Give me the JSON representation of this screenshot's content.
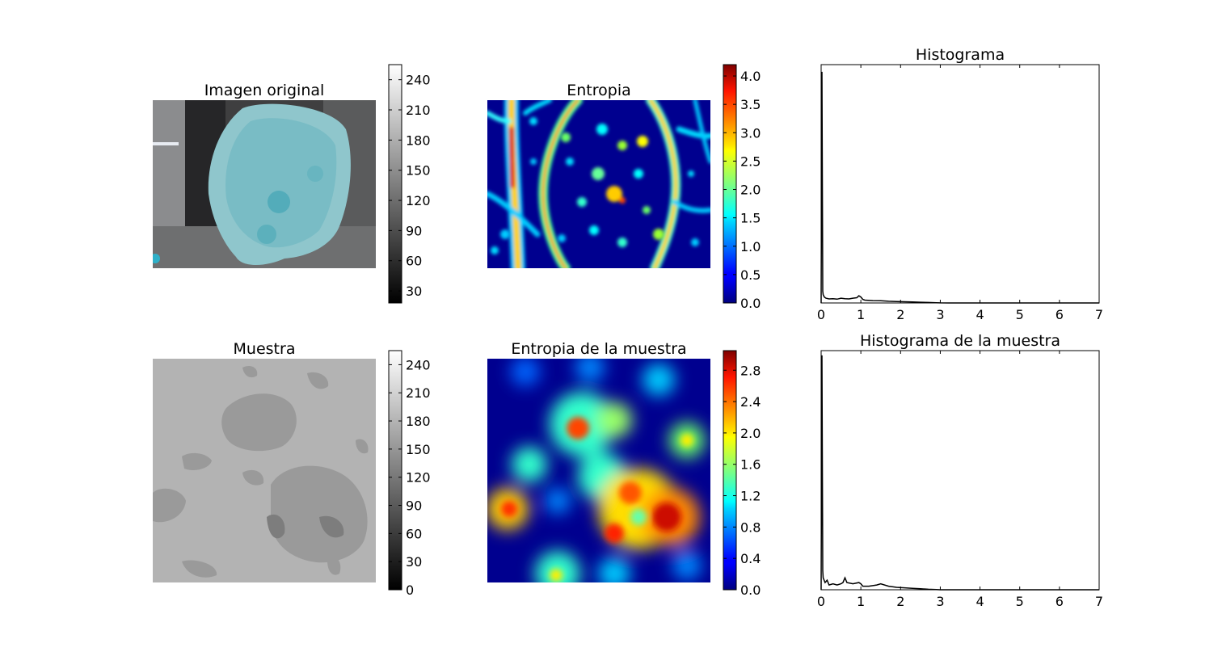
{
  "figure": {
    "panels": [
      {
        "key": "img_original",
        "title": "Imagen original",
        "kind": "image",
        "colormap": "gray",
        "subject": "photo of blue-stained tissue sample on dark background"
      },
      {
        "key": "img_entropia",
        "title": "Entropia",
        "kind": "image",
        "colormap": "jet"
      },
      {
        "key": "img_muestra",
        "title": "Muestra",
        "kind": "image",
        "colormap": "gray"
      },
      {
        "key": "img_entropia_muestra",
        "title": "Entropia de la muestra",
        "kind": "image",
        "colormap": "jet"
      }
    ],
    "colorbars": [
      {
        "key": "cb_original",
        "colormap": "gray",
        "vmin": 18,
        "vmax": 255,
        "ticks": [
          "30",
          "60",
          "90",
          "120",
          "150",
          "180",
          "210",
          "240"
        ],
        "tick_values": [
          30,
          60,
          90,
          120,
          150,
          180,
          210,
          240
        ]
      },
      {
        "key": "cb_entropia",
        "colormap": "jet",
        "vmin": 0,
        "vmax": 4.2,
        "ticks": [
          "0.0",
          "0.5",
          "1.0",
          "1.5",
          "2.0",
          "2.5",
          "3.0",
          "3.5",
          "4.0"
        ],
        "tick_values": [
          0,
          0.5,
          1,
          1.5,
          2,
          2.5,
          3,
          3.5,
          4
        ]
      },
      {
        "key": "cb_muestra",
        "colormap": "gray",
        "vmin": 0,
        "vmax": 255,
        "ticks": [
          "0",
          "30",
          "60",
          "90",
          "120",
          "150",
          "180",
          "210",
          "240"
        ],
        "tick_values": [
          0,
          30,
          60,
          90,
          120,
          150,
          180,
          210,
          240
        ]
      },
      {
        "key": "cb_entropia_muestra",
        "colormap": "jet",
        "vmin": 0,
        "vmax": 3.05,
        "ticks": [
          "0.0",
          "0.4",
          "0.8",
          "1.2",
          "1.6",
          "2.0",
          "2.4",
          "2.8"
        ],
        "tick_values": [
          0,
          0.4,
          0.8,
          1.2,
          1.6,
          2,
          2.4,
          2.8
        ]
      }
    ],
    "colors": {
      "axis": "#000000",
      "line": "#000000",
      "background": "#ffffff"
    }
  },
  "chart_data": [
    {
      "type": "line",
      "title": "Histograma",
      "xlabel": "",
      "ylabel": "",
      "xlim": [
        0,
        7
      ],
      "ylim": [
        0,
        1
      ],
      "x_ticks": [
        "0",
        "1",
        "2",
        "3",
        "4",
        "5",
        "6",
        "7"
      ],
      "y_ticks": [],
      "grid": false,
      "x": [
        0,
        0.02,
        0.04,
        0.05,
        0.08,
        0.12,
        0.2,
        0.3,
        0.4,
        0.5,
        0.6,
        0.7,
        0.8,
        0.9,
        0.95,
        1.0,
        1.05,
        1.1,
        1.3,
        1.5,
        1.7,
        1.9,
        2.1,
        2.3,
        2.5,
        2.7,
        2.9,
        3.0,
        3.2,
        7.0
      ],
      "y": [
        0,
        0.97,
        0.05,
        0.035,
        0.025,
        0.02,
        0.017,
        0.018,
        0.016,
        0.02,
        0.018,
        0.017,
        0.02,
        0.022,
        0.03,
        0.025,
        0.015,
        0.012,
        0.01,
        0.009,
        0.007,
        0.006,
        0.005,
        0.004,
        0.003,
        0.002,
        0.001,
        0.0005,
        0,
        0
      ]
    },
    {
      "type": "line",
      "title": "Histograma de la muestra",
      "xlabel": "",
      "ylabel": "",
      "xlim": [
        0,
        7
      ],
      "ylim": [
        0,
        1
      ],
      "x_ticks": [
        "0",
        "1",
        "2",
        "3",
        "4",
        "5",
        "6",
        "7"
      ],
      "y_ticks": [],
      "grid": false,
      "x": [
        0,
        0.02,
        0.04,
        0.05,
        0.1,
        0.15,
        0.2,
        0.3,
        0.4,
        0.5,
        0.55,
        0.6,
        0.65,
        0.8,
        0.95,
        1.0,
        1.05,
        1.2,
        1.4,
        1.5,
        1.7,
        1.9,
        2.1,
        2.3,
        2.5,
        2.7,
        2.9,
        3.0,
        7.0
      ],
      "y": [
        0,
        0.98,
        0.08,
        0.05,
        0.03,
        0.04,
        0.02,
        0.025,
        0.02,
        0.025,
        0.03,
        0.05,
        0.03,
        0.025,
        0.03,
        0.025,
        0.015,
        0.015,
        0.02,
        0.025,
        0.015,
        0.01,
        0.008,
        0.006,
        0.004,
        0.002,
        0.001,
        0,
        0
      ]
    }
  ]
}
